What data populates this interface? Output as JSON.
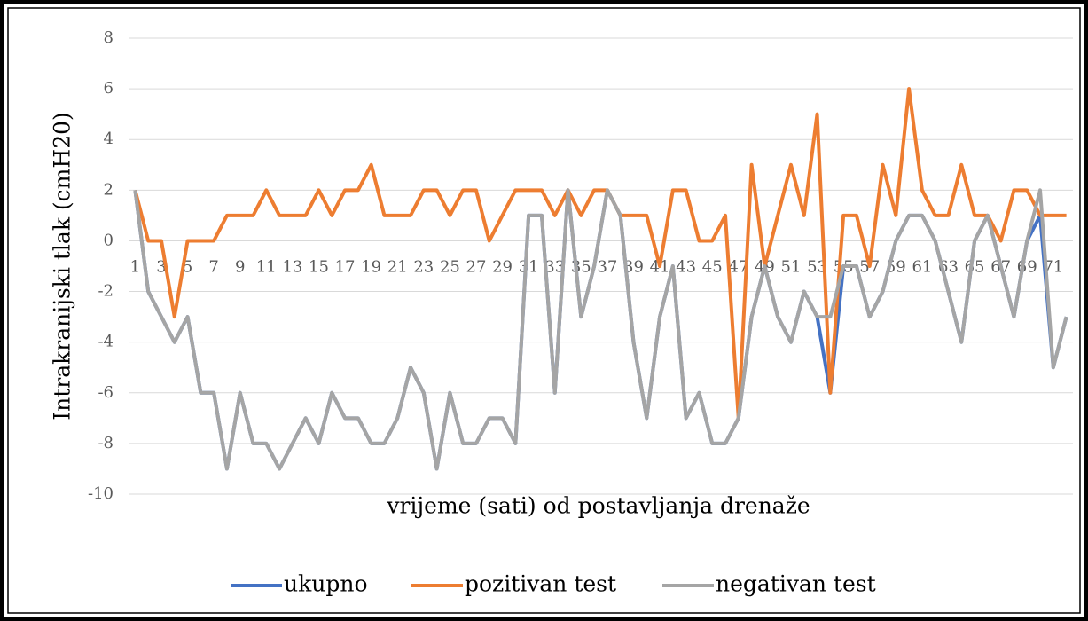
{
  "chart_data": {
    "type": "line",
    "y_label": "Intrakranijski tlak (cmH20)",
    "x_label": "vrijeme (sati) od postavljanja drenaže",
    "categories": [
      1,
      null,
      3,
      null,
      5,
      null,
      7,
      null,
      9,
      null,
      11,
      null,
      13,
      null,
      15,
      null,
      17,
      null,
      19,
      null,
      21,
      null,
      23,
      null,
      25,
      null,
      27,
      null,
      29,
      null,
      31,
      null,
      33,
      null,
      35,
      null,
      37,
      null,
      39,
      null,
      41,
      null,
      43,
      null,
      45,
      null,
      47,
      null,
      49,
      null,
      51,
      null,
      53,
      null,
      55,
      null,
      57,
      null,
      59,
      null,
      61,
      null,
      63,
      null,
      65,
      null,
      67,
      null,
      69,
      null,
      71,
      null
    ],
    "ylim": [
      -10,
      8
    ],
    "yticks": [
      -10,
      -8,
      -6,
      -4,
      -2,
      0,
      2,
      4,
      6,
      8
    ],
    "grid": true,
    "legend": "bottom",
    "series": [
      {
        "name": "ukupno",
        "color": "#4472c4",
        "values": [
          2,
          -2,
          -3,
          -4,
          -3,
          -6,
          -6,
          -9,
          -6,
          -8,
          -8,
          -9,
          -8,
          -7,
          -8,
          -6,
          -7,
          -7,
          -8,
          -8,
          -7,
          -5,
          -6,
          -9,
          -6,
          -8,
          -8,
          -7,
          -7,
          -8,
          1,
          1,
          -6,
          2,
          -3,
          -1,
          2,
          1,
          -4,
          -7,
          -3,
          -1,
          -7,
          -6,
          -8,
          -8,
          -7,
          -3,
          -1,
          -3,
          -4,
          -2,
          -3,
          -6,
          -1,
          -1,
          -3,
          -2,
          0,
          1,
          1,
          0,
          -2,
          -4,
          0,
          1,
          -1,
          -3,
          0,
          1,
          -5,
          -3
        ]
      },
      {
        "name": "pozitivan test",
        "color": "#ed7d31",
        "values": [
          2,
          0,
          0,
          -3,
          0,
          0,
          0,
          1,
          1,
          1,
          2,
          1,
          1,
          1,
          2,
          1,
          2,
          2,
          3,
          1,
          1,
          1,
          2,
          2,
          1,
          2,
          2,
          0,
          1,
          2,
          2,
          2,
          1,
          2,
          1,
          2,
          2,
          1,
          1,
          1,
          -1,
          2,
          2,
          0,
          0,
          1,
          -7,
          3,
          -1,
          1,
          3,
          1,
          5,
          -6,
          1,
          1,
          -1,
          3,
          1,
          6,
          2,
          1,
          1,
          3,
          1,
          1,
          0,
          2,
          2,
          1,
          1,
          1
        ]
      },
      {
        "name": "negativan test",
        "color": "#a5a5a5",
        "values": [
          2,
          -2,
          -3,
          -4,
          -3,
          -6,
          -6,
          -9,
          -6,
          -8,
          -8,
          -9,
          -8,
          -7,
          -8,
          -6,
          -7,
          -7,
          -8,
          -8,
          -7,
          -5,
          -6,
          -9,
          -6,
          -8,
          -8,
          -7,
          -7,
          -8,
          1,
          1,
          -6,
          2,
          -3,
          -1,
          2,
          1,
          -4,
          -7,
          -3,
          -1,
          -7,
          -6,
          -8,
          -8,
          -7,
          -3,
          -1,
          -3,
          -4,
          -2,
          -3,
          -3,
          -1,
          -1,
          -3,
          -2,
          0,
          1,
          1,
          0,
          -2,
          -4,
          0,
          1,
          -1,
          -3,
          0,
          2,
          -5,
          -3
        ]
      }
    ]
  }
}
